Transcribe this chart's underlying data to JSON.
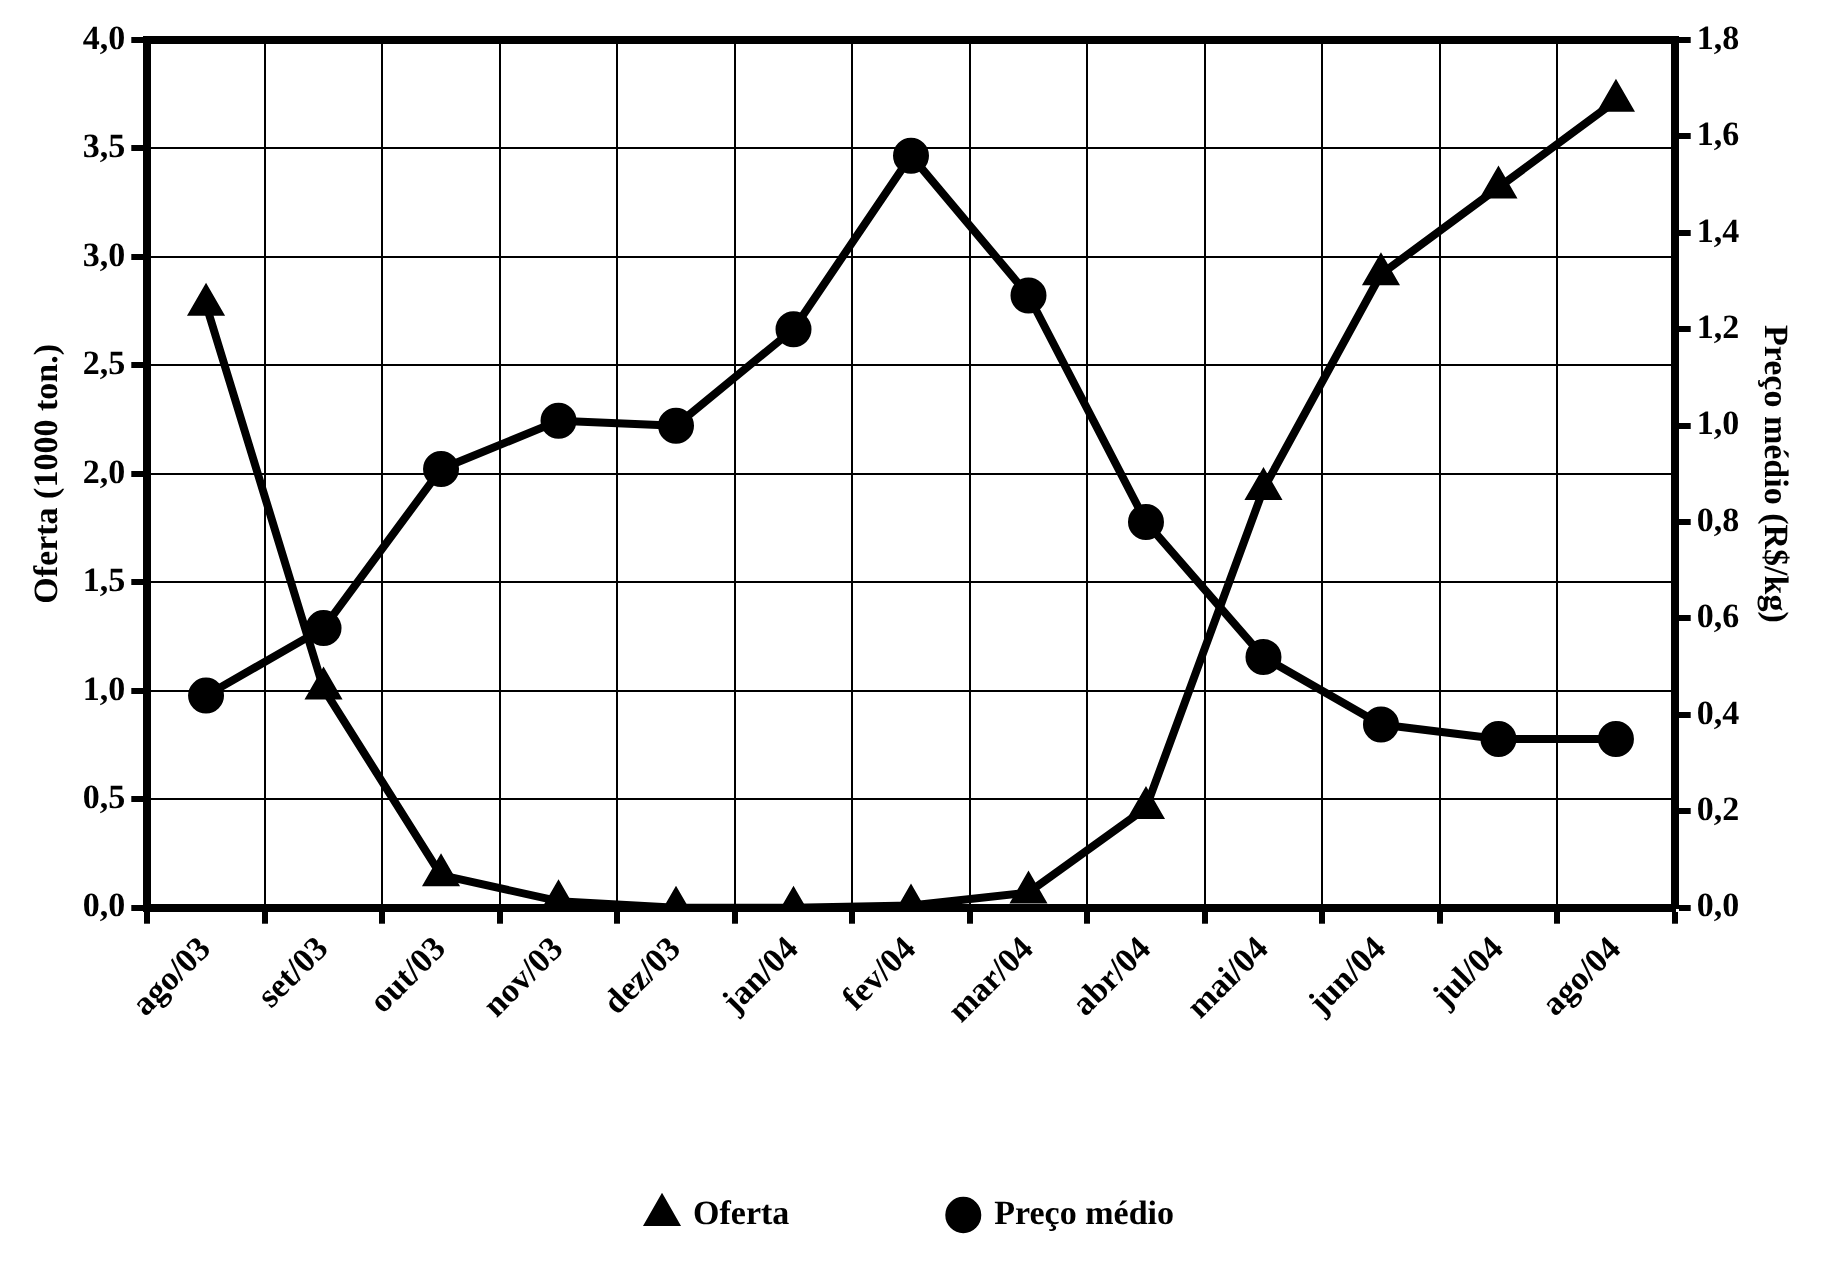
{
  "chart_data": {
    "type": "line",
    "ylabel": "Oferta (1000 ton.)",
    "y2label": "Preço médio (R$/kg)",
    "categories": [
      "ago/03",
      "set/03",
      "out/03",
      "nov/03",
      "dez/03",
      "jan/04",
      "fev/04",
      "mar/04",
      "abr/04",
      "mai/04",
      "jun/04",
      "jul/04",
      "ago/04"
    ],
    "series": [
      {
        "name": "Oferta",
        "color": "#000000",
        "marker": "triangle",
        "values": [
          2.78,
          1.01,
          0.15,
          0.03,
          0.0,
          0.0,
          0.01,
          0.07,
          0.46,
          1.93,
          2.92,
          3.32,
          3.72
        ]
      },
      {
        "name": "Preço médio",
        "color": "#000000",
        "marker": "circle",
        "axis": "y2",
        "values": [
          0.44,
          0.58,
          0.91,
          1.01,
          1.0,
          1.2,
          1.56,
          1.27,
          0.8,
          0.52,
          0.38,
          0.35,
          0.35
        ]
      }
    ],
    "ylim": [
      0,
      4
    ],
    "yticks": [
      {
        "value": 0,
        "label": "0,0"
      },
      {
        "value": 0.5,
        "label": "0,5"
      },
      {
        "value": 1,
        "label": "1,0"
      },
      {
        "value": 1.5,
        "label": "1,5"
      },
      {
        "value": 2,
        "label": "2,0"
      },
      {
        "value": 2.5,
        "label": "2,5"
      },
      {
        "value": 3,
        "label": "3,0"
      },
      {
        "value": 3.5,
        "label": "3,5"
      },
      {
        "value": 4,
        "label": "4,0"
      }
    ],
    "y2lim": [
      0,
      1.8
    ],
    "y2ticks": [
      {
        "value": 0,
        "label": "0,0"
      },
      {
        "value": 0.2,
        "label": "0,2"
      },
      {
        "value": 0.4,
        "label": "0,4"
      },
      {
        "value": 0.6,
        "label": "0,6"
      },
      {
        "value": 0.8,
        "label": "0,8"
      },
      {
        "value": 1,
        "label": "1,0"
      },
      {
        "value": 1.2,
        "label": "1,2"
      },
      {
        "value": 1.4,
        "label": "1,4"
      },
      {
        "value": 1.6,
        "label": "1,6"
      },
      {
        "value": 1.8,
        "label": "1,8"
      }
    ],
    "grid": true,
    "legend": "bottom",
    "line_style": "solid"
  }
}
